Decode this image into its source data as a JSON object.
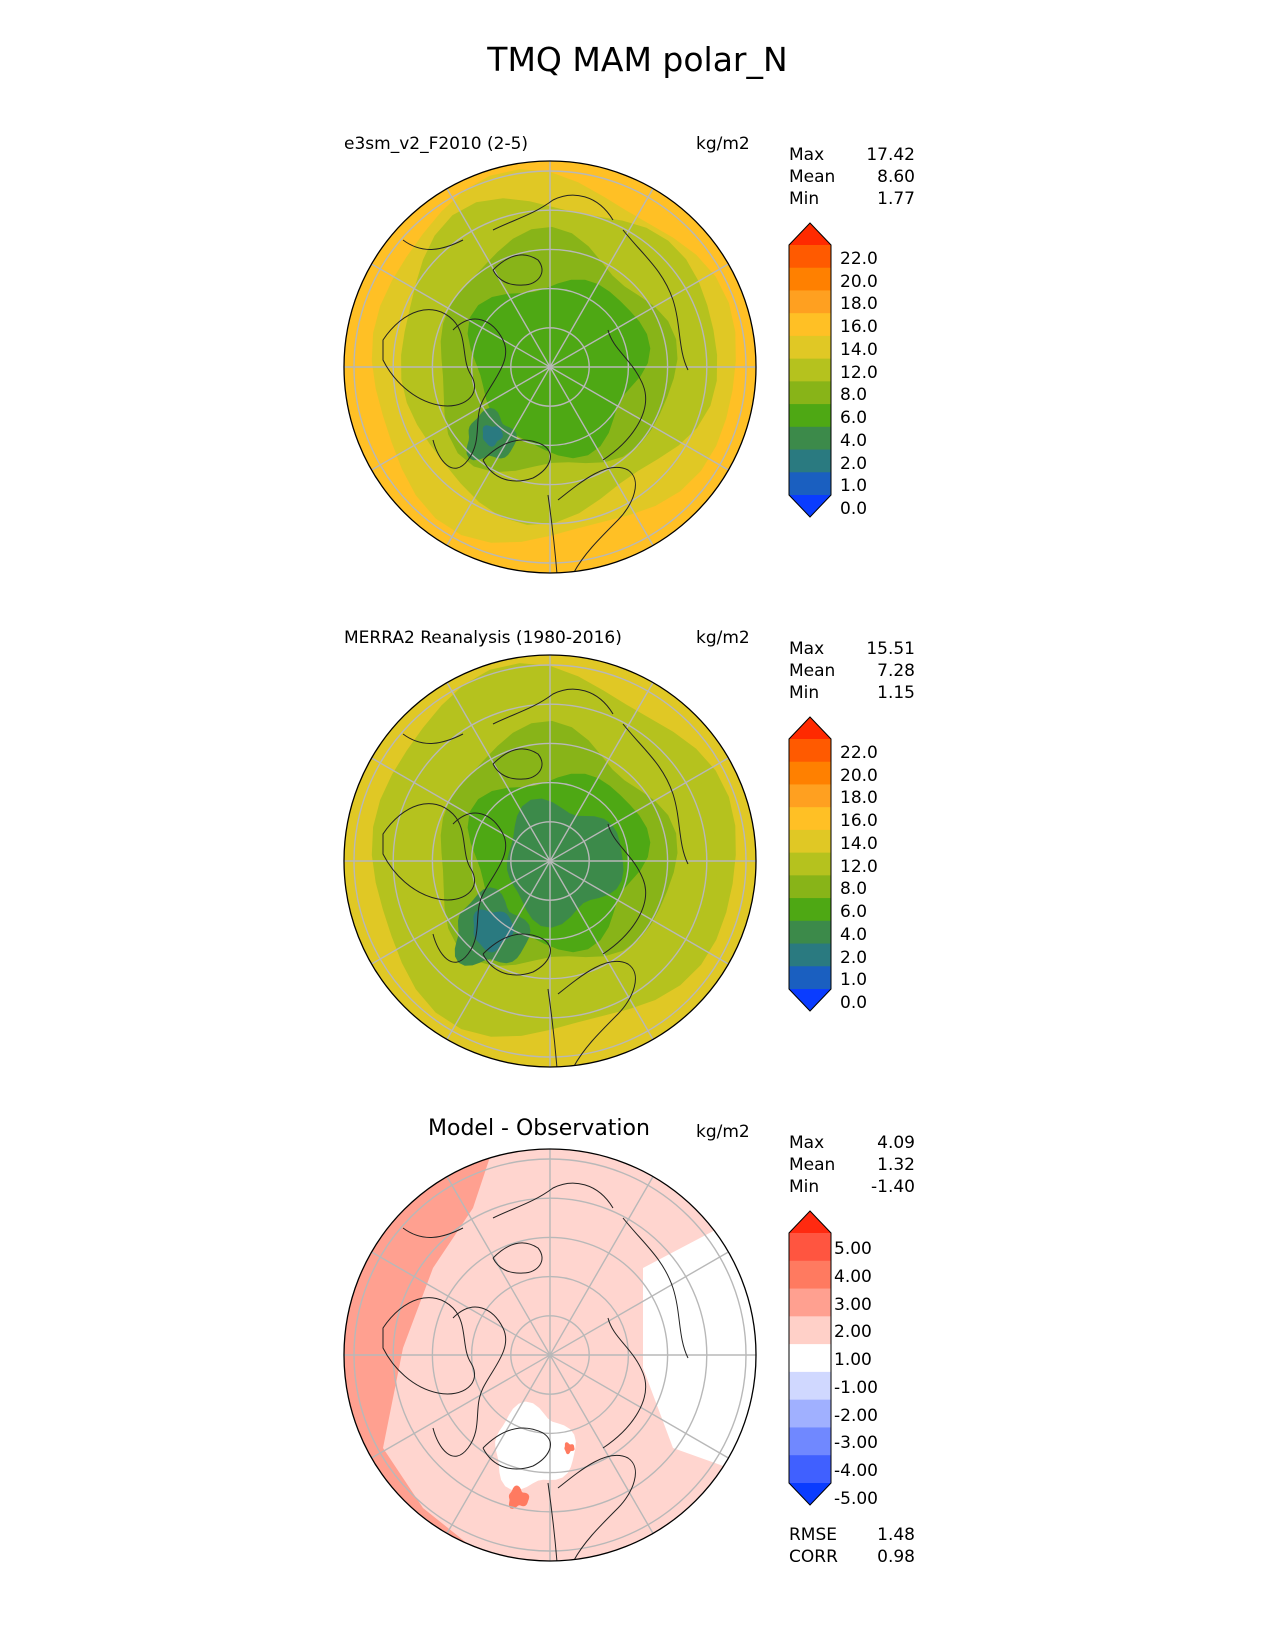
{
  "title": "TMQ MAM polar_N",
  "panels": [
    {
      "name": "test",
      "label": "e3sm_v2_F2010 (2-5)",
      "units": "kg/m2",
      "stats": [
        [
          "Max",
          "17.42"
        ],
        [
          "Mean",
          "8.60"
        ],
        [
          "Min",
          "1.77"
        ]
      ],
      "colorbar": {
        "ticks": [
          "22.0",
          "20.0",
          "18.0",
          "16.0",
          "14.0",
          "12.0",
          "8.0",
          "6.0",
          "4.0",
          "2.0",
          "1.0",
          "0.0"
        ],
        "colors": [
          "#ff2a00",
          "#ff5a00",
          "#ff8000",
          "#ffa020",
          "#ffc025",
          "#e0c825",
          "#b5c21e",
          "#88b418",
          "#4ea814",
          "#3c8a4a",
          "#2a7a80",
          "#1a5fc0",
          "#0a3cff"
        ]
      }
    },
    {
      "name": "reference",
      "label": "MERRA2 Reanalysis (1980-2016)",
      "units": "kg/m2",
      "stats": [
        [
          "Max",
          "15.51"
        ],
        [
          "Mean",
          "7.28"
        ],
        [
          "Min",
          "1.15"
        ]
      ],
      "colorbar": {
        "ticks": [
          "22.0",
          "20.0",
          "18.0",
          "16.0",
          "14.0",
          "12.0",
          "8.0",
          "6.0",
          "4.0",
          "2.0",
          "1.0",
          "0.0"
        ],
        "colors": [
          "#ff2a00",
          "#ff5a00",
          "#ff8000",
          "#ffa020",
          "#ffc025",
          "#e0c825",
          "#b5c21e",
          "#88b418",
          "#4ea814",
          "#3c8a4a",
          "#2a7a80",
          "#1a5fc0",
          "#0a3cff"
        ]
      }
    },
    {
      "name": "difference",
      "label": "Model - Observation",
      "units": "kg/m2",
      "stats": [
        [
          "Max",
          "4.09"
        ],
        [
          "Mean",
          "1.32"
        ],
        [
          "Min",
          "-1.40"
        ]
      ],
      "extra_stats": [
        [
          "RMSE",
          "1.48"
        ],
        [
          "CORR",
          "0.98"
        ]
      ],
      "colorbar": {
        "ticks": [
          "5.00",
          "4.00",
          "3.00",
          "2.00",
          "1.00",
          "-1.00",
          "-2.00",
          "-3.00",
          "-4.00",
          "-5.00"
        ],
        "colors": [
          "#ff2a10",
          "#ff5540",
          "#ff7a60",
          "#ffa090",
          "#ffd0c8",
          "#ffffff",
          "#d0d8ff",
          "#a0b0ff",
          "#7088ff",
          "#4060ff",
          "#0a3cff"
        ]
      }
    }
  ],
  "map_colors": {
    "test": {
      "outer": "#ffc025",
      "ring2": "#e0c825",
      "mid": "#b5c21e",
      "inner": "#88b418",
      "core": "#4ea814",
      "basin": "#3c8a4a",
      "deep": "#2a7a80"
    },
    "reference": {
      "outer": "#e0c825",
      "ring2": "#b5c21e",
      "mid": "#b5c21e",
      "inner": "#88b418",
      "core": "#4ea814",
      "basin": "#3c8a4a",
      "deep": "#2a7a80"
    },
    "difference": {
      "base": "#ffd5cf",
      "pos": "#ffa090",
      "strong": "#ff7a60",
      "white": "#ffffff"
    }
  }
}
